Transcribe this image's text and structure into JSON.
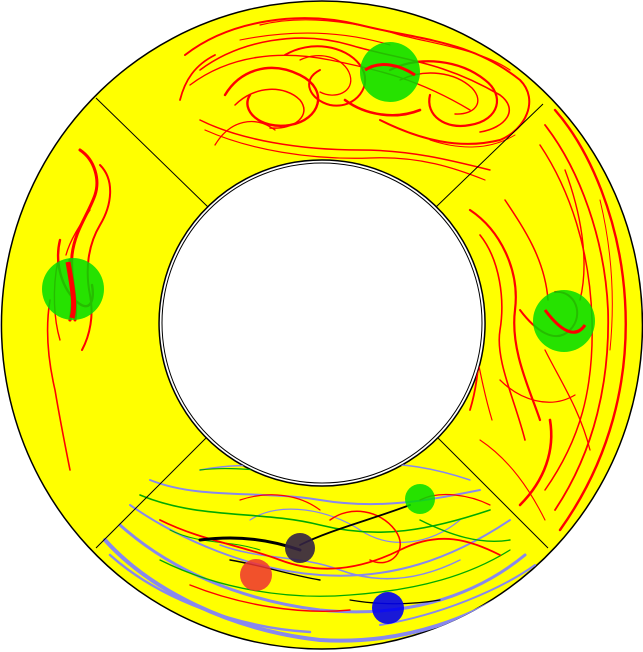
{
  "colors": {
    "background": "#ffffff",
    "annulus_fill": "#ffff00",
    "outline": "#000000",
    "dye_red": "#ff0000",
    "marker_green": "#00dd00",
    "dye_green": "#00aa00",
    "dye_lavender": "#8888ee",
    "dye_black": "#000000",
    "marker_blue": "#0000ee",
    "marker_red": "#ee3333",
    "marker_dark": "#332244"
  },
  "sectors": [
    {
      "name": "sector-top",
      "dye": "red"
    },
    {
      "name": "sector-right",
      "dye": "red"
    },
    {
      "name": "sector-bottom",
      "dye": "mixed"
    },
    {
      "name": "sector-left",
      "dye": "red"
    }
  ],
  "markers": [
    {
      "name": "marker-top",
      "color": "green"
    },
    {
      "name": "marker-right",
      "color": "green"
    },
    {
      "name": "marker-left",
      "color": "green"
    },
    {
      "name": "marker-bottom-green",
      "color": "green"
    },
    {
      "name": "marker-bottom-dark",
      "color": "dark"
    },
    {
      "name": "marker-bottom-red",
      "color": "red"
    },
    {
      "name": "marker-bottom-blue",
      "color": "blue"
    }
  ]
}
